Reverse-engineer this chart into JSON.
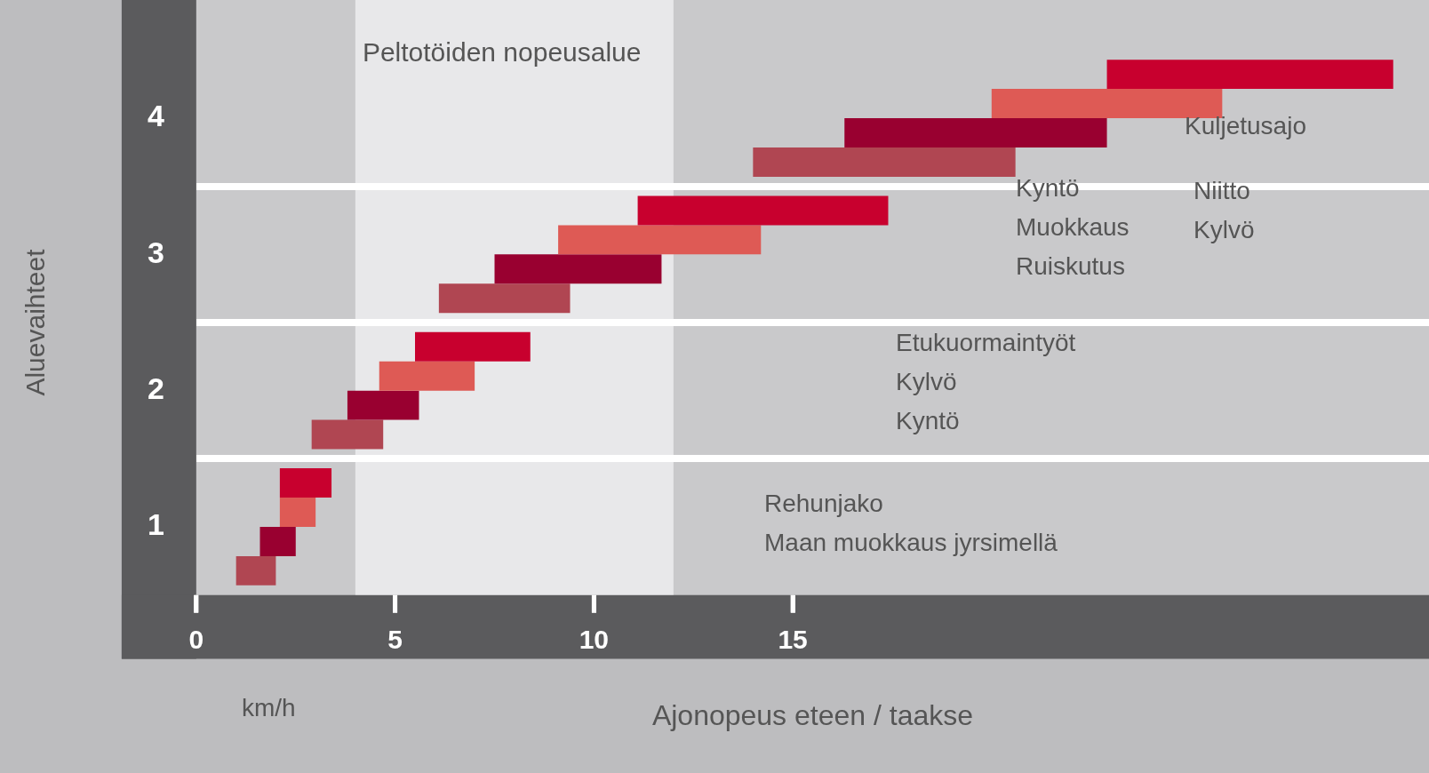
{
  "chart_data": {
    "type": "bar",
    "orientation": "horizontal",
    "xlabel": "Ajonopeus eteen / taakse",
    "ylabel": "Aluevaihteet",
    "categories": [
      "4",
      "3",
      "2",
      "1"
    ],
    "series": [
      {
        "color": "#c8002e",
        "base": [
          22.9,
          11.1,
          5.5,
          2.1
        ],
        "values": [
          7.2,
          6.3,
          2.9,
          1.3
        ]
      },
      {
        "color": "#de5a55",
        "base": [
          20.0,
          9.1,
          4.6,
          2.1
        ],
        "values": [
          5.8,
          5.1,
          2.4,
          0.9
        ]
      },
      {
        "color": "#990030",
        "base": [
          16.3,
          7.5,
          3.8,
          1.6
        ],
        "values": [
          6.6,
          4.2,
          1.8,
          0.9
        ]
      },
      {
        "color": "#b04652",
        "base": [
          14.0,
          6.1,
          2.9,
          1.0
        ],
        "values": [
          6.6,
          3.3,
          1.8,
          1.0
        ]
      }
    ],
    "xlim": [
      0,
      31
    ],
    "xticks": [
      0,
      5,
      10,
      15
    ],
    "bands": [
      {
        "axis": "x",
        "from": 4,
        "to": 12,
        "label": "Peltotöiden nopeusalue",
        "color": "#e8e8ea"
      }
    ],
    "annotations": [
      "Kuljetusajo",
      "Kyntö\nMuokkaus\nRuiskutus",
      "Niitto\nKylvö",
      "Etukuormaintyöt\nKylvö\nKyntö",
      "Rehunjako\nMaan muokkaus jyrsimellä",
      "km/h"
    ],
    "grid": "y",
    "legend": false
  }
}
